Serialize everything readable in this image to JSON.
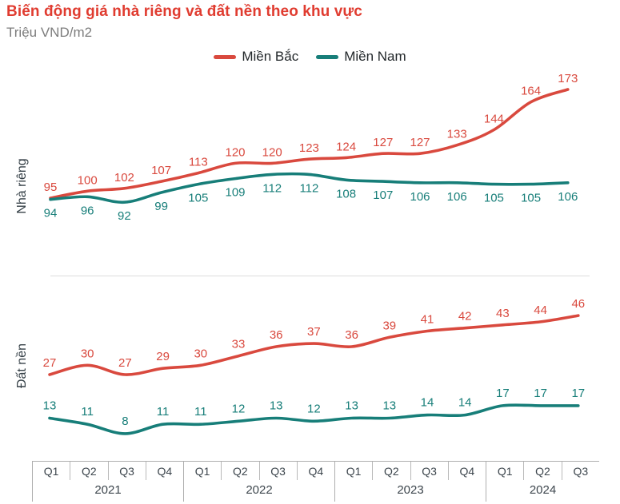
{
  "header": {
    "title": "Biến động giá nhà riêng và đất nền theo khu vực",
    "unit": "Triệu VND/m2"
  },
  "legend": {
    "items": [
      {
        "label": "Miền Bắc",
        "color": "#d9493e"
      },
      {
        "label": "Miền Nam",
        "color": "#177e79"
      }
    ]
  },
  "chart_data": [
    {
      "type": "line",
      "title": "Nhà riêng",
      "unit": "Triệu VND/m2",
      "grid": false,
      "legend_position": "top",
      "ylim": [
        85,
        180
      ],
      "categories": [
        "Q1 2021",
        "Q2 2021",
        "Q3 2021",
        "Q4 2021",
        "Q1 2022",
        "Q2 2022",
        "Q3 2022",
        "Q4 2022",
        "Q1 2023",
        "Q2 2023",
        "Q3 2023",
        "Q4 2023",
        "Q1 2024",
        "Q2 2024",
        "Q3 2024"
      ],
      "series": [
        {
          "name": "Miền Bắc",
          "color": "#d9493e",
          "label_position": "above",
          "values": [
            95,
            100,
            102,
            107,
            113,
            120,
            120,
            123,
            124,
            127,
            127,
            133,
            144,
            164,
            173
          ]
        },
        {
          "name": "Miền Nam",
          "color": "#177e79",
          "label_position": "below",
          "values": [
            94,
            96,
            92,
            99,
            105,
            109,
            112,
            112,
            108,
            107,
            106,
            106,
            105,
            105,
            106
          ]
        }
      ]
    },
    {
      "type": "line",
      "title": "Đất nền",
      "unit": "Triệu VND/m2",
      "grid": false,
      "legend_position": "top",
      "ylim": [
        0,
        50
      ],
      "categories": [
        "Q1 2021",
        "Q2 2021",
        "Q3 2021",
        "Q4 2021",
        "Q1 2022",
        "Q2 2022",
        "Q3 2022",
        "Q4 2022",
        "Q1 2023",
        "Q2 2023",
        "Q3 2023",
        "Q4 2023",
        "Q1 2024",
        "Q2 2024",
        "Q3 2024"
      ],
      "series": [
        {
          "name": "Miền Bắc",
          "color": "#d9493e",
          "label_position": "above",
          "values": [
            27,
            30,
            27,
            29,
            30,
            33,
            36,
            37,
            36,
            39,
            41,
            42,
            43,
            44,
            46
          ]
        },
        {
          "name": "Miền Nam",
          "color": "#177e79",
          "label_position": "above",
          "values": [
            13,
            11,
            8,
            11,
            11,
            12,
            13,
            12,
            13,
            13,
            14,
            14,
            17,
            17,
            17
          ]
        }
      ]
    }
  ],
  "x_axis": {
    "years": [
      {
        "label": "2021",
        "quarters": [
          "Q1",
          "Q2",
          "Q3",
          "Q4"
        ]
      },
      {
        "label": "2022",
        "quarters": [
          "Q1",
          "Q2",
          "Q3",
          "Q4"
        ]
      },
      {
        "label": "2023",
        "quarters": [
          "Q1",
          "Q2",
          "Q3",
          "Q4"
        ]
      },
      {
        "label": "2024",
        "quarters": [
          "Q1",
          "Q2",
          "Q3"
        ]
      }
    ]
  }
}
